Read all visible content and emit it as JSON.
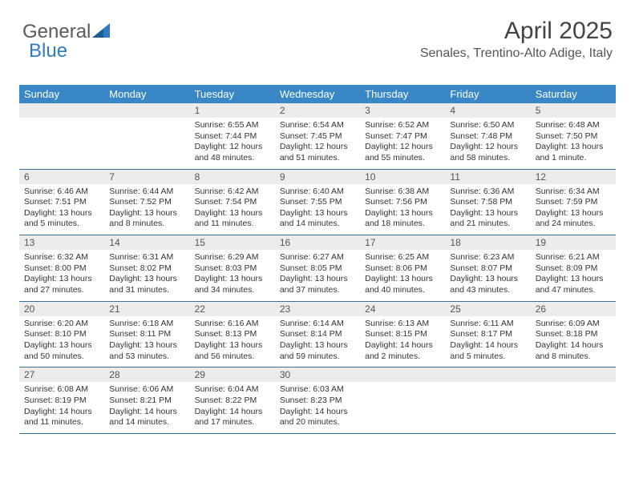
{
  "logo": {
    "part1": "General",
    "part2": "Blue"
  },
  "header": {
    "month": "April 2025",
    "location": "Senales, Trentino-Alto Adige, Italy"
  },
  "colors": {
    "header_bg": "#3a87c8",
    "header_text": "#ffffff",
    "daynum_bg": "#ececec",
    "week_border": "#3a6f9b",
    "body_text": "#333333",
    "logo_gray": "#5a5a5a",
    "logo_blue": "#2f7bbf"
  },
  "day_names": [
    "Sunday",
    "Monday",
    "Tuesday",
    "Wednesday",
    "Thursday",
    "Friday",
    "Saturday"
  ],
  "weeks": [
    [
      null,
      null,
      {
        "n": "1",
        "sr": "Sunrise: 6:55 AM",
        "ss": "Sunset: 7:44 PM",
        "dl": "Daylight: 12 hours and 48 minutes."
      },
      {
        "n": "2",
        "sr": "Sunrise: 6:54 AM",
        "ss": "Sunset: 7:45 PM",
        "dl": "Daylight: 12 hours and 51 minutes."
      },
      {
        "n": "3",
        "sr": "Sunrise: 6:52 AM",
        "ss": "Sunset: 7:47 PM",
        "dl": "Daylight: 12 hours and 55 minutes."
      },
      {
        "n": "4",
        "sr": "Sunrise: 6:50 AM",
        "ss": "Sunset: 7:48 PM",
        "dl": "Daylight: 12 hours and 58 minutes."
      },
      {
        "n": "5",
        "sr": "Sunrise: 6:48 AM",
        "ss": "Sunset: 7:50 PM",
        "dl": "Daylight: 13 hours and 1 minute."
      }
    ],
    [
      {
        "n": "6",
        "sr": "Sunrise: 6:46 AM",
        "ss": "Sunset: 7:51 PM",
        "dl": "Daylight: 13 hours and 5 minutes."
      },
      {
        "n": "7",
        "sr": "Sunrise: 6:44 AM",
        "ss": "Sunset: 7:52 PM",
        "dl": "Daylight: 13 hours and 8 minutes."
      },
      {
        "n": "8",
        "sr": "Sunrise: 6:42 AM",
        "ss": "Sunset: 7:54 PM",
        "dl": "Daylight: 13 hours and 11 minutes."
      },
      {
        "n": "9",
        "sr": "Sunrise: 6:40 AM",
        "ss": "Sunset: 7:55 PM",
        "dl": "Daylight: 13 hours and 14 minutes."
      },
      {
        "n": "10",
        "sr": "Sunrise: 6:38 AM",
        "ss": "Sunset: 7:56 PM",
        "dl": "Daylight: 13 hours and 18 minutes."
      },
      {
        "n": "11",
        "sr": "Sunrise: 6:36 AM",
        "ss": "Sunset: 7:58 PM",
        "dl": "Daylight: 13 hours and 21 minutes."
      },
      {
        "n": "12",
        "sr": "Sunrise: 6:34 AM",
        "ss": "Sunset: 7:59 PM",
        "dl": "Daylight: 13 hours and 24 minutes."
      }
    ],
    [
      {
        "n": "13",
        "sr": "Sunrise: 6:32 AM",
        "ss": "Sunset: 8:00 PM",
        "dl": "Daylight: 13 hours and 27 minutes."
      },
      {
        "n": "14",
        "sr": "Sunrise: 6:31 AM",
        "ss": "Sunset: 8:02 PM",
        "dl": "Daylight: 13 hours and 31 minutes."
      },
      {
        "n": "15",
        "sr": "Sunrise: 6:29 AM",
        "ss": "Sunset: 8:03 PM",
        "dl": "Daylight: 13 hours and 34 minutes."
      },
      {
        "n": "16",
        "sr": "Sunrise: 6:27 AM",
        "ss": "Sunset: 8:05 PM",
        "dl": "Daylight: 13 hours and 37 minutes."
      },
      {
        "n": "17",
        "sr": "Sunrise: 6:25 AM",
        "ss": "Sunset: 8:06 PM",
        "dl": "Daylight: 13 hours and 40 minutes."
      },
      {
        "n": "18",
        "sr": "Sunrise: 6:23 AM",
        "ss": "Sunset: 8:07 PM",
        "dl": "Daylight: 13 hours and 43 minutes."
      },
      {
        "n": "19",
        "sr": "Sunrise: 6:21 AM",
        "ss": "Sunset: 8:09 PM",
        "dl": "Daylight: 13 hours and 47 minutes."
      }
    ],
    [
      {
        "n": "20",
        "sr": "Sunrise: 6:20 AM",
        "ss": "Sunset: 8:10 PM",
        "dl": "Daylight: 13 hours and 50 minutes."
      },
      {
        "n": "21",
        "sr": "Sunrise: 6:18 AM",
        "ss": "Sunset: 8:11 PM",
        "dl": "Daylight: 13 hours and 53 minutes."
      },
      {
        "n": "22",
        "sr": "Sunrise: 6:16 AM",
        "ss": "Sunset: 8:13 PM",
        "dl": "Daylight: 13 hours and 56 minutes."
      },
      {
        "n": "23",
        "sr": "Sunrise: 6:14 AM",
        "ss": "Sunset: 8:14 PM",
        "dl": "Daylight: 13 hours and 59 minutes."
      },
      {
        "n": "24",
        "sr": "Sunrise: 6:13 AM",
        "ss": "Sunset: 8:15 PM",
        "dl": "Daylight: 14 hours and 2 minutes."
      },
      {
        "n": "25",
        "sr": "Sunrise: 6:11 AM",
        "ss": "Sunset: 8:17 PM",
        "dl": "Daylight: 14 hours and 5 minutes."
      },
      {
        "n": "26",
        "sr": "Sunrise: 6:09 AM",
        "ss": "Sunset: 8:18 PM",
        "dl": "Daylight: 14 hours and 8 minutes."
      }
    ],
    [
      {
        "n": "27",
        "sr": "Sunrise: 6:08 AM",
        "ss": "Sunset: 8:19 PM",
        "dl": "Daylight: 14 hours and 11 minutes."
      },
      {
        "n": "28",
        "sr": "Sunrise: 6:06 AM",
        "ss": "Sunset: 8:21 PM",
        "dl": "Daylight: 14 hours and 14 minutes."
      },
      {
        "n": "29",
        "sr": "Sunrise: 6:04 AM",
        "ss": "Sunset: 8:22 PM",
        "dl": "Daylight: 14 hours and 17 minutes."
      },
      {
        "n": "30",
        "sr": "Sunrise: 6:03 AM",
        "ss": "Sunset: 8:23 PM",
        "dl": "Daylight: 14 hours and 20 minutes."
      },
      null,
      null,
      null
    ]
  ]
}
